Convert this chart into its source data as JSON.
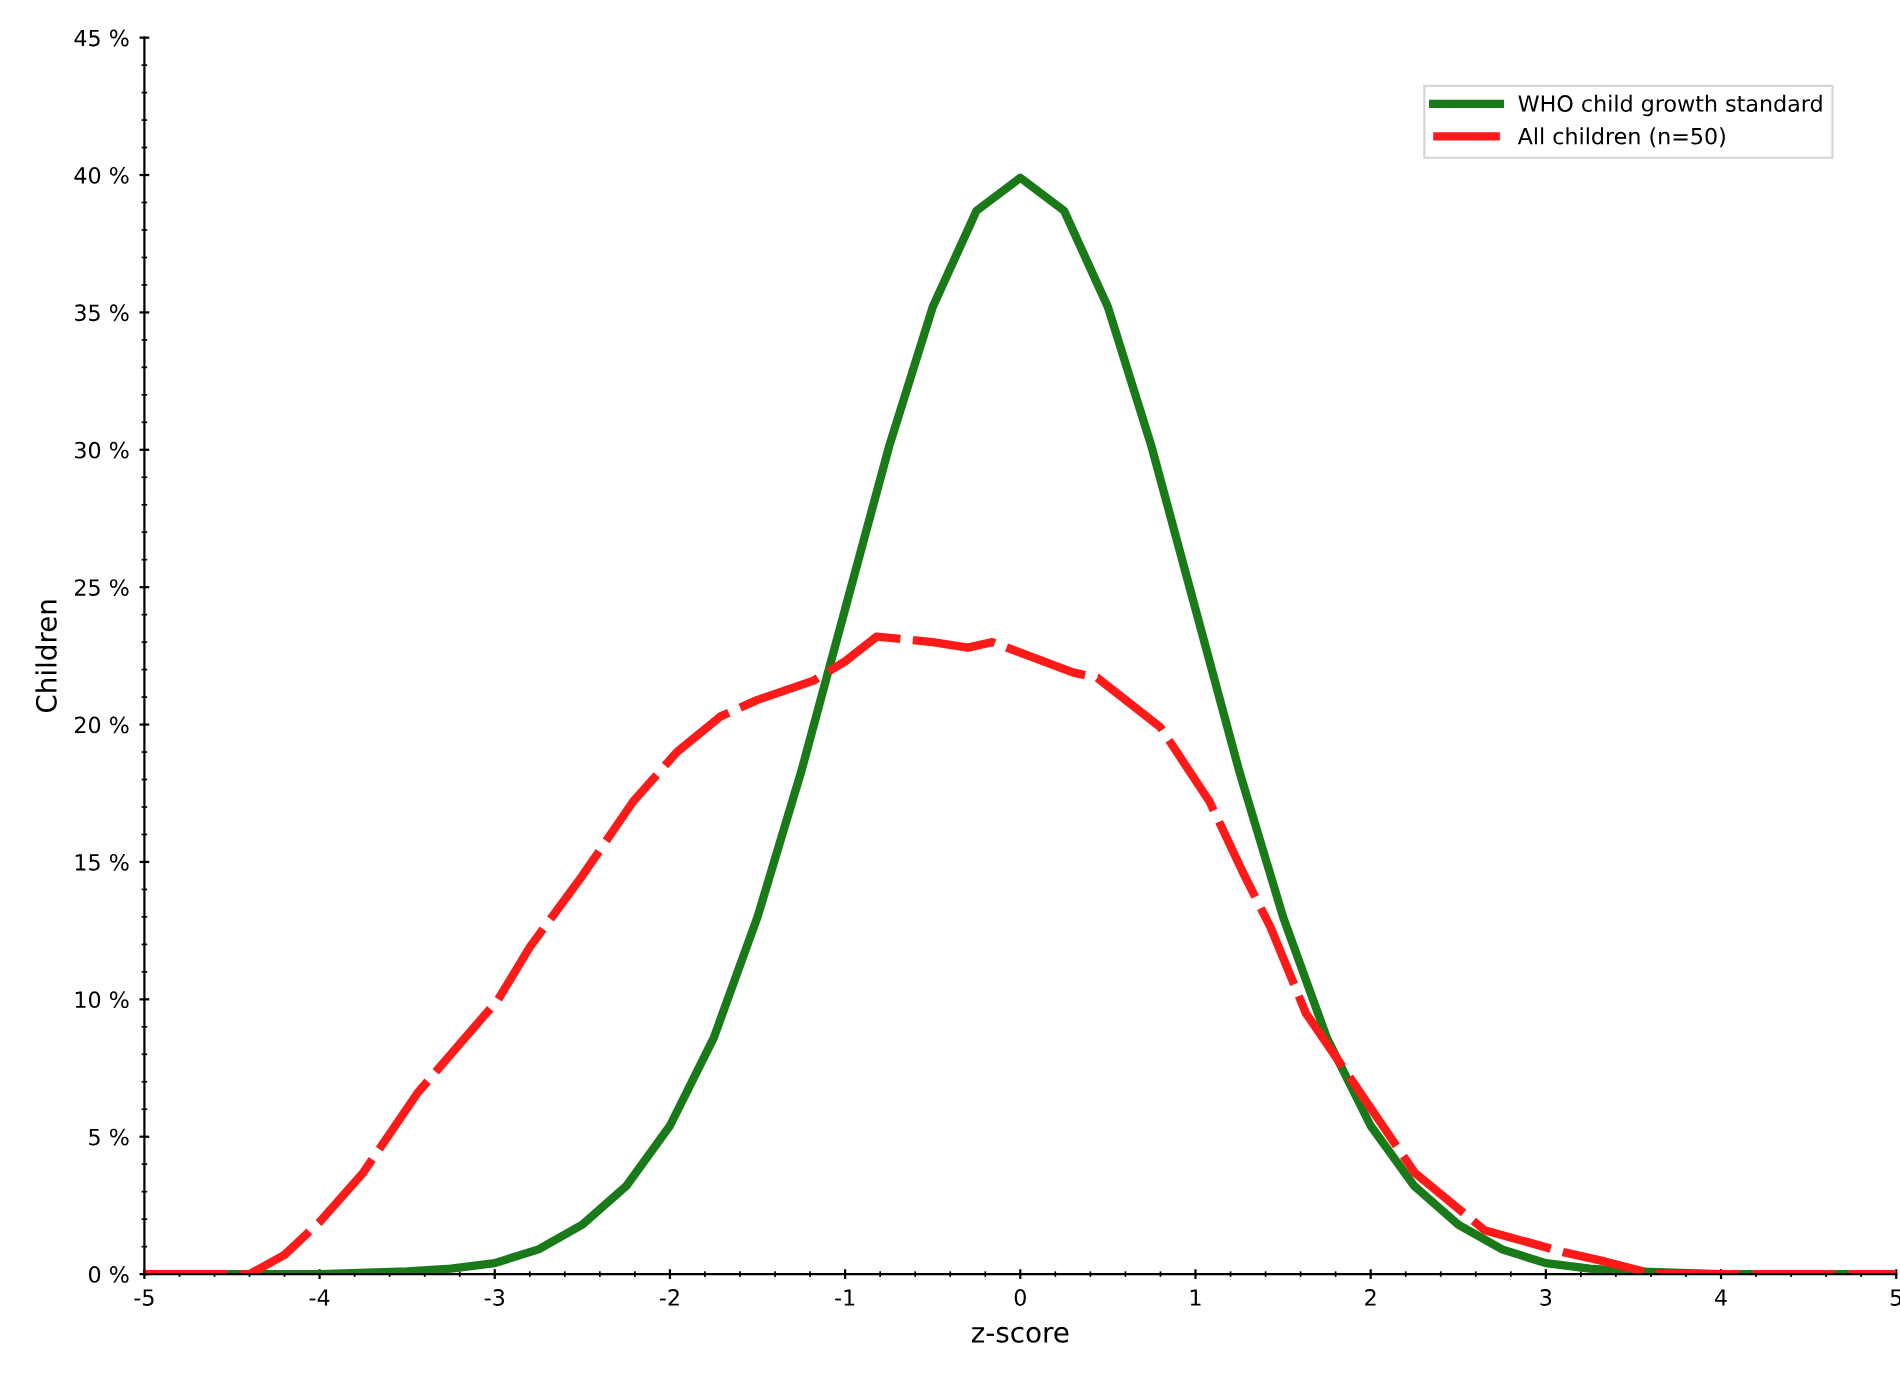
{
  "chart_data": {
    "type": "line",
    "xlabel": "z-score",
    "ylabel": "Children",
    "xlim": [
      -5,
      5
    ],
    "xticks": [
      -5,
      -4,
      -3,
      -2,
      -1,
      0,
      1,
      2,
      3,
      4,
      5
    ],
    "ylim": [
      0,
      45
    ],
    "yticks": [
      {
        "value": 0,
        "label": "0 %"
      },
      {
        "value": 5,
        "label": "5 %"
      },
      {
        "value": 10,
        "label": "10 %"
      },
      {
        "value": 15,
        "label": "15 %"
      },
      {
        "value": 20,
        "label": "20 %"
      },
      {
        "value": 25,
        "label": "25 %"
      },
      {
        "value": 30,
        "label": "30 %"
      },
      {
        "value": 35,
        "label": "35 %"
      },
      {
        "value": 40,
        "label": "40 %"
      },
      {
        "value": 45,
        "label": "45 %"
      }
    ],
    "grid": false,
    "legend": "top right",
    "marker": "none",
    "series": [
      {
        "name": "WHO child growth standard",
        "color": "#1a7a1a",
        "line_style": "solid",
        "x": [
          -5,
          -4,
          -3.5,
          -3.25,
          -3,
          -2.75,
          -2.5,
          -2.25,
          -2,
          -1.75,
          -1.5,
          -1.25,
          -1,
          -0.75,
          -0.5,
          -0.25,
          0,
          0.25,
          0.5,
          0.75,
          1,
          1.25,
          1.5,
          1.75,
          2,
          2.25,
          2.5,
          2.75,
          3,
          3.25,
          3.5,
          4,
          5
        ],
        "values": [
          0,
          0,
          0.1,
          0.2,
          0.4,
          0.9,
          1.8,
          3.2,
          5.4,
          8.6,
          13.0,
          18.3,
          24.2,
          30.1,
          35.2,
          38.7,
          39.9,
          38.7,
          35.2,
          30.1,
          24.2,
          18.3,
          13.0,
          8.6,
          5.4,
          3.2,
          1.8,
          0.9,
          0.4,
          0.2,
          0.1,
          0,
          0
        ]
      },
      {
        "name": "All children (n=50)",
        "color": "#ff1a1a",
        "line_style": "dashed",
        "x": [
          -5,
          -4.4,
          -4.2,
          -4,
          -3.75,
          -3.44,
          -2.98,
          -2.8,
          -2.5,
          -2.21,
          -1.96,
          -1.71,
          -1.5,
          -1.18,
          -1,
          -0.82,
          -0.5,
          -0.3,
          -0.16,
          0.3,
          0.44,
          0.8,
          1.08,
          1.28,
          1.43,
          1.63,
          1.92,
          2.25,
          2.65,
          3.1,
          3.31,
          3.62,
          5
        ],
        "values": [
          0,
          0,
          0.7,
          1.9,
          3.7,
          6.6,
          10.0,
          11.9,
          14.5,
          17.2,
          19.0,
          20.3,
          20.9,
          21.6,
          22.3,
          23.2,
          23.0,
          22.8,
          23.0,
          21.9,
          21.7,
          19.9,
          17.2,
          14.5,
          12.6,
          9.5,
          6.8,
          3.7,
          1.6,
          0.8,
          0.5,
          0,
          0
        ]
      }
    ]
  }
}
